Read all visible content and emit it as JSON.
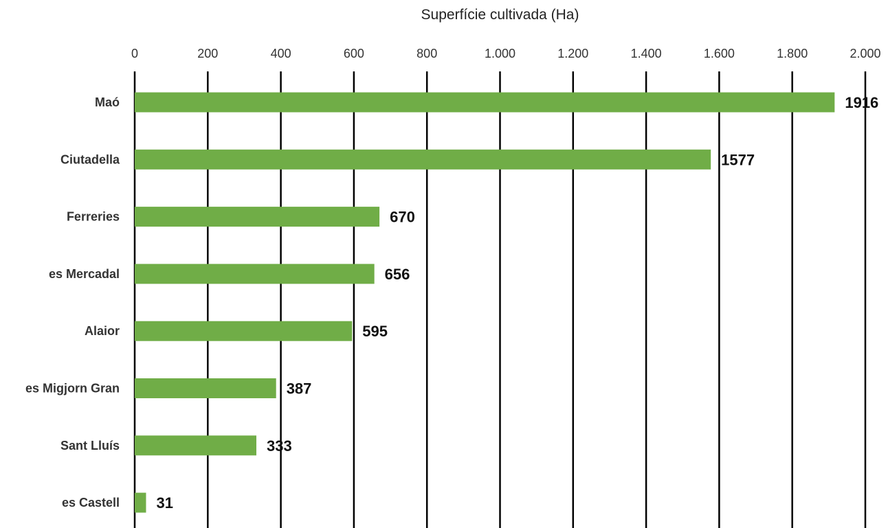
{
  "chart_data": {
    "type": "bar",
    "orientation": "horizontal",
    "title": "",
    "xlabel": "Superfície cultivada (Ha)",
    "ylabel": "",
    "xlim": [
      0,
      2000
    ],
    "x_axis_position": "top",
    "tick_values": [
      0,
      200,
      400,
      600,
      800,
      1000,
      1200,
      1400,
      1600,
      1800,
      2000
    ],
    "tick_labels": [
      "0",
      "200",
      "400",
      "600",
      "800",
      "1.000",
      "1.200",
      "1.400",
      "1.600",
      "1.800",
      "2.000"
    ],
    "categories": [
      "Maó",
      "Ciutadella",
      "Ferreries",
      "es Mercadal",
      "Alaior",
      "es Migjorn Gran",
      "Sant Lluís",
      "es Castell"
    ],
    "values": [
      1916,
      1577,
      670,
      656,
      595,
      387,
      333,
      31
    ],
    "data_labels": [
      "1916",
      "1577",
      "670",
      "656",
      "595",
      "387",
      "333",
      "31"
    ],
    "grid": true,
    "legend": "none",
    "bar_color": "#70AD47",
    "grid_color": "#000000"
  }
}
